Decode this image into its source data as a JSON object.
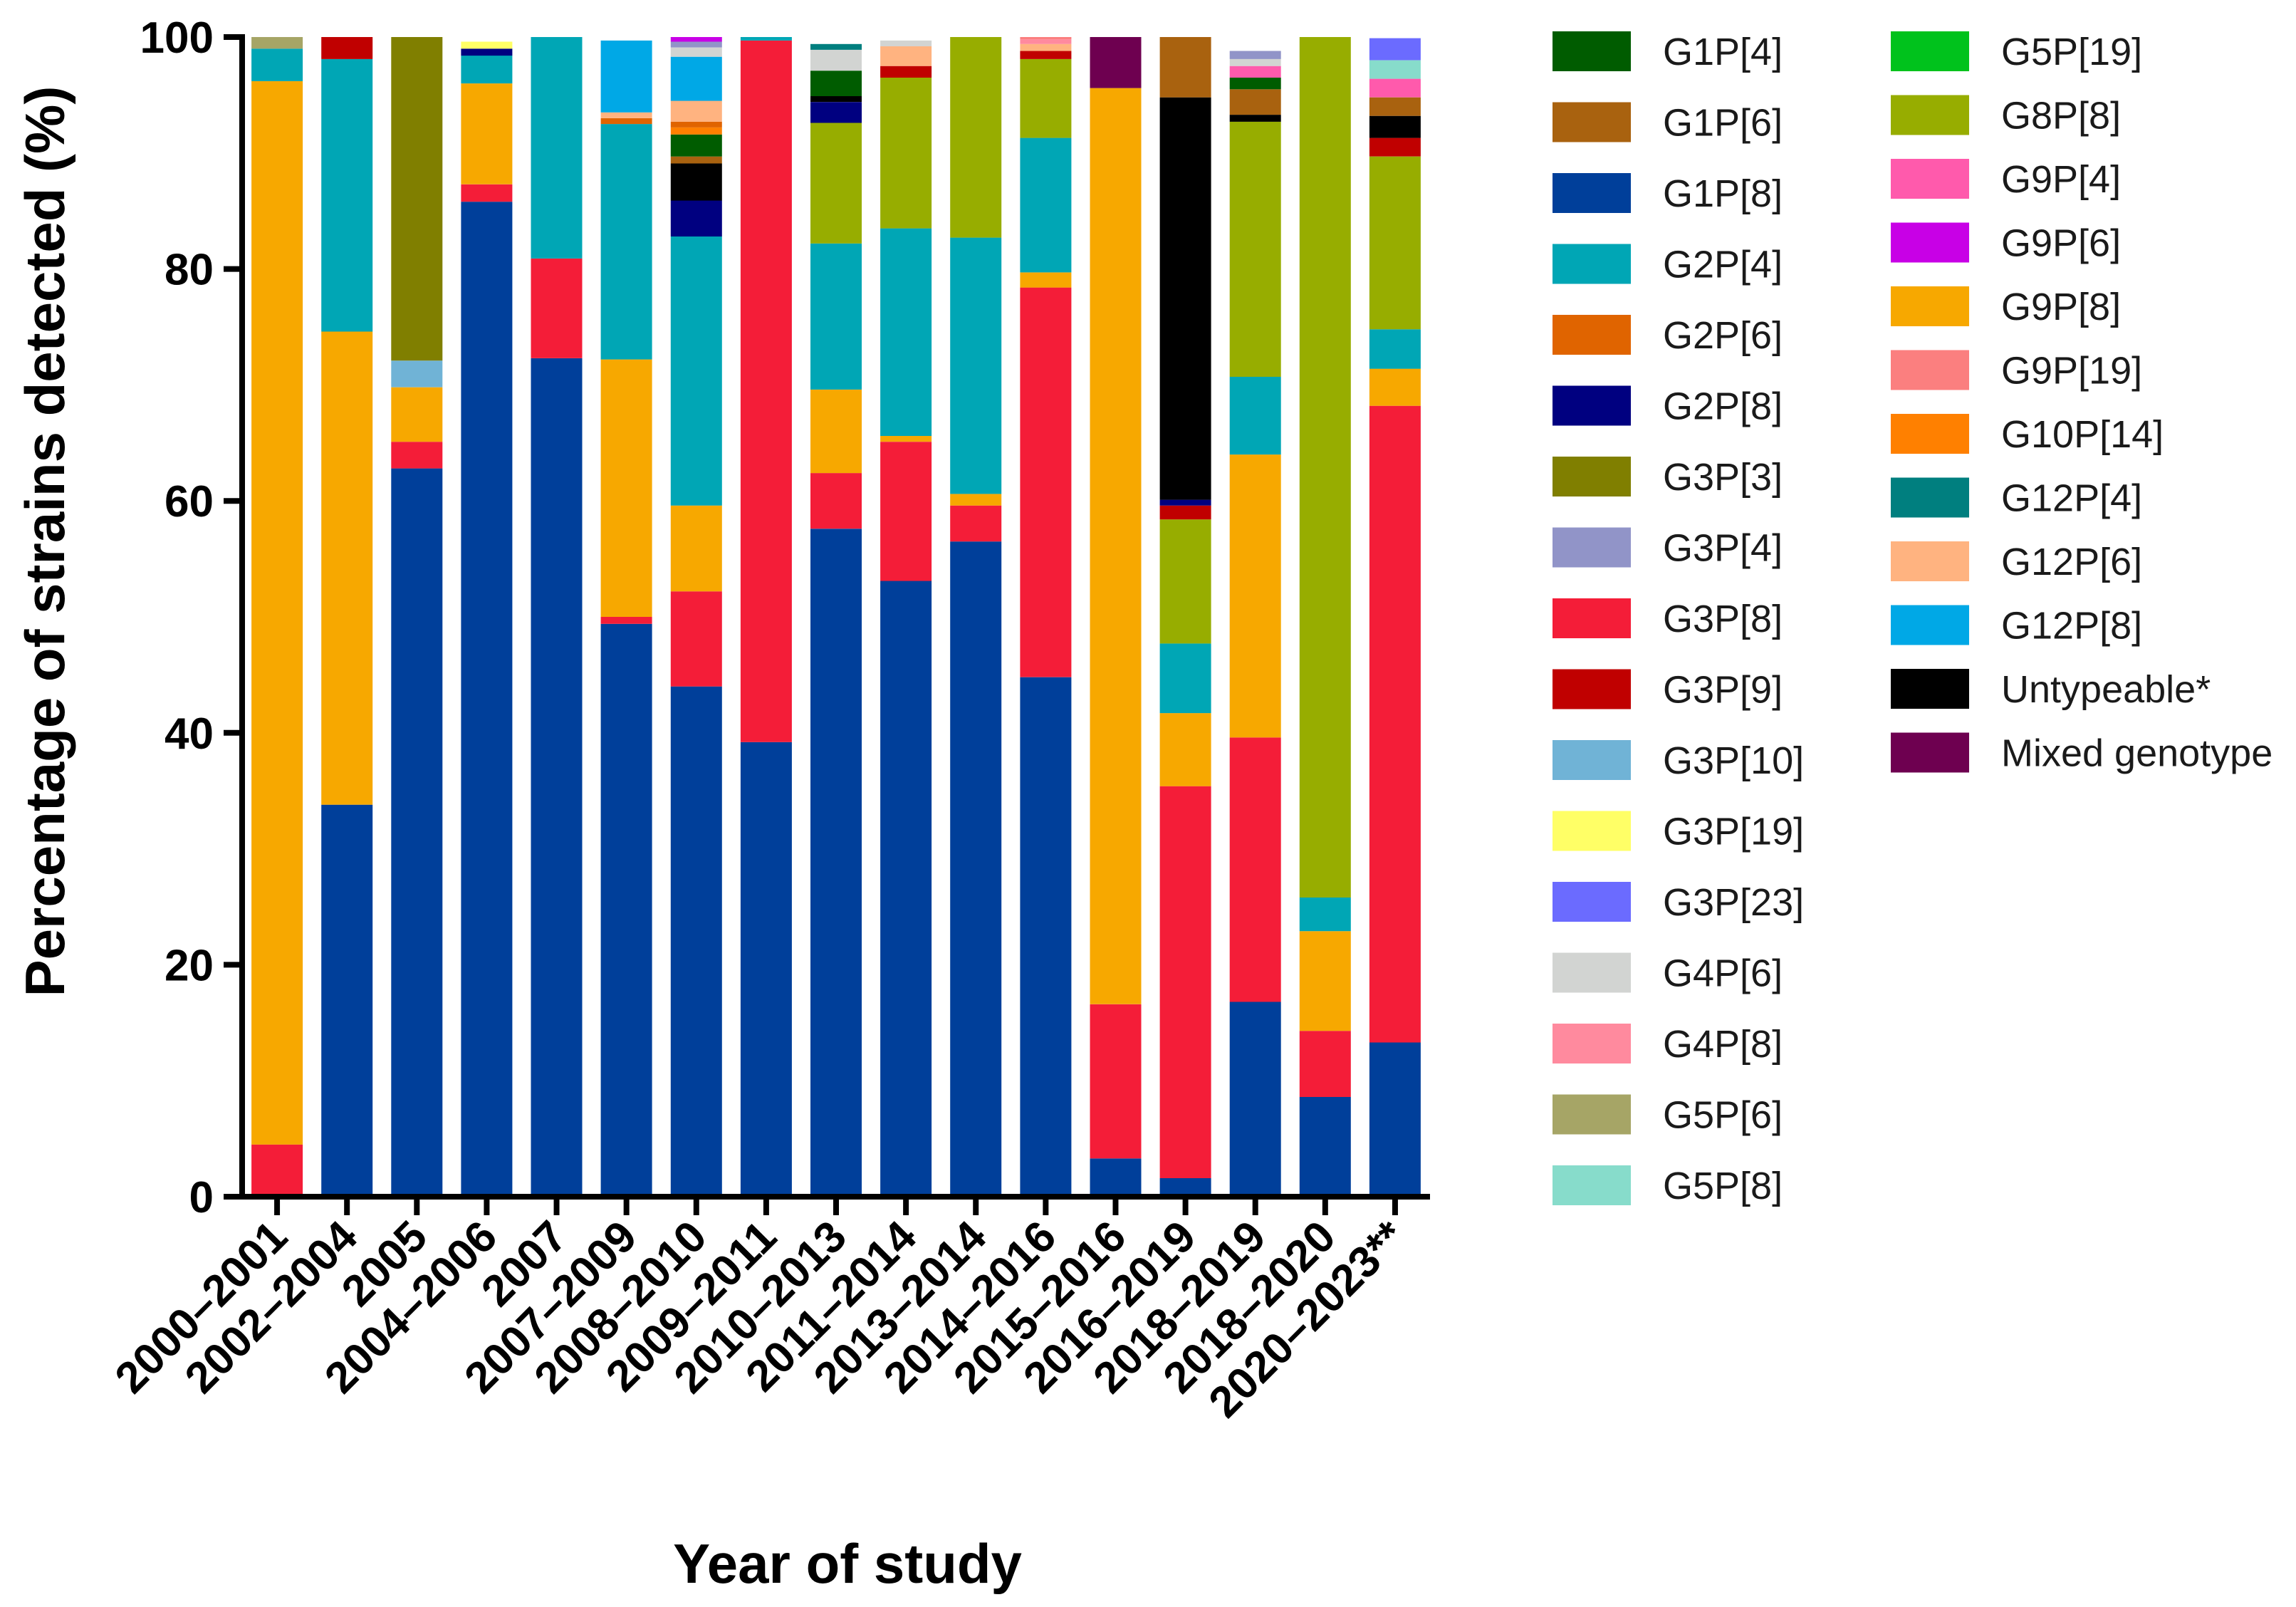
{
  "chart_data": {
    "type": "bar",
    "stacked": true,
    "title": "",
    "xlabel": "Year of study",
    "ylabel": "Percentage of strains detected (%)",
    "ylim": [
      0,
      100
    ],
    "yticks": [
      "0",
      "20",
      "40",
      "60",
      "80",
      "100"
    ],
    "legend_position": "right",
    "categories": [
      "2000–2001",
      "2002–2004",
      "2005",
      "2004–2006",
      "2007",
      "2007–2009",
      "2008–2010",
      "2009–2011",
      "2010–2013",
      "2011–2014",
      "2013–2014",
      "2014–2016",
      "2015–2016",
      "2016–2019",
      "2018–2019",
      "2018–2020",
      "2020–2023**"
    ],
    "series": [
      {
        "name": "G1P[8]",
        "color": "#003f9a",
        "values": [
          0,
          33.8,
          62.8,
          85.8,
          72.3,
          49.4,
          44.0,
          39.2,
          57.6,
          53.1,
          56.5,
          44.8,
          3.3,
          1.6,
          16.8,
          8.6,
          13.3
        ]
      },
      {
        "name": "G3P[8]",
        "color": "#f41d38",
        "values": [
          4.5,
          0,
          2.3,
          1.5,
          8.6,
          0.6,
          8.2,
          60.5,
          4.8,
          12.0,
          3.1,
          33.6,
          13.3,
          33.8,
          22.8,
          5.7,
          54.9
        ]
      },
      {
        "name": "G9P[8]",
        "color": "#f7a800",
        "values": [
          91.7,
          40.8,
          4.7,
          8.7,
          0,
          22.2,
          7.4,
          0,
          7.2,
          0.5,
          1.0,
          1.3,
          79.0,
          6.3,
          24.4,
          8.6,
          3.2
        ]
      },
      {
        "name": "G3P[10]",
        "color": "#70b3d6",
        "values": [
          0,
          0,
          2.3,
          0,
          0,
          0,
          0,
          0,
          0,
          0,
          0,
          0,
          0,
          0,
          0,
          0,
          0
        ]
      },
      {
        "name": "G2P[4]",
        "color": "#00a6b5",
        "values": [
          2.8,
          23.5,
          0,
          2.4,
          19.1,
          20.3,
          23.2,
          0.3,
          12.6,
          17.9,
          22.1,
          11.6,
          0,
          6.0,
          6.7,
          2.9,
          3.4
        ]
      },
      {
        "name": "G8P[8]",
        "color": "#97ad00",
        "values": [
          0,
          0,
          0,
          0,
          0,
          0,
          0,
          0,
          10.4,
          13.0,
          17.3,
          6.8,
          0,
          10.7,
          22.0,
          74.2,
          14.9
        ]
      },
      {
        "name": "G3P[3]",
        "color": "#807f00",
        "values": [
          0,
          0,
          27.9,
          0,
          0,
          0,
          0,
          0,
          0,
          0,
          0,
          0,
          0,
          0,
          0,
          0,
          0
        ]
      },
      {
        "name": "G5P[6]",
        "color": "#a6a566",
        "values": [
          1.0,
          0,
          0,
          0,
          0,
          0,
          0,
          0,
          0,
          0,
          0,
          0,
          0,
          0,
          0,
          0,
          0
        ]
      },
      {
        "name": "G3P[9]",
        "color": "#c00000",
        "values": [
          0,
          2.0,
          0,
          0,
          0,
          0,
          0,
          0,
          0,
          1.0,
          0,
          0.7,
          0,
          1.2,
          0,
          0,
          1.6
        ]
      },
      {
        "name": "G2P[8]",
        "color": "#000080",
        "values": [
          0,
          0,
          0,
          0.6,
          0,
          0,
          3.1,
          0,
          1.8,
          0,
          0,
          0,
          0,
          0.5,
          0,
          0,
          0
        ]
      },
      {
        "name": "G3P[19]",
        "color": "#ffff66",
        "values": [
          0,
          0,
          0,
          0.6,
          0,
          0,
          0,
          0,
          0,
          0,
          0,
          0,
          0,
          0,
          0,
          0,
          0
        ]
      },
      {
        "name": "Untypeable*",
        "color": "#000000",
        "values": [
          0,
          0,
          0,
          0,
          0,
          0,
          3.2,
          0,
          0.5,
          0,
          0,
          0,
          0,
          34.7,
          0.6,
          0,
          1.9
        ]
      },
      {
        "name": "G1P[6]",
        "color": "#a9620f",
        "values": [
          0,
          0,
          0,
          0,
          0,
          0,
          0.6,
          0,
          0,
          0,
          0,
          0,
          0,
          5.2,
          2.2,
          0,
          1.6
        ]
      },
      {
        "name": "G1P[4]",
        "color": "#005c00",
        "values": [
          0,
          0,
          0,
          0,
          0,
          0,
          1.9,
          0,
          2.2,
          0,
          0,
          0,
          0,
          0,
          1.0,
          0,
          0
        ]
      },
      {
        "name": "G9P[4]",
        "color": "#ff5aac",
        "values": [
          0,
          0,
          0,
          0,
          0,
          0,
          0,
          0,
          0,
          0,
          0,
          0,
          0,
          0,
          1.0,
          0,
          1.6
        ]
      },
      {
        "name": "G10P[14]",
        "color": "#ff8000",
        "values": [
          0,
          0,
          0,
          0,
          0,
          0,
          0.6,
          0,
          0,
          0,
          0,
          0,
          0,
          0,
          0,
          0,
          0
        ]
      },
      {
        "name": "G2P[6]",
        "color": "#e06400",
        "values": [
          0,
          0,
          0,
          0,
          0,
          0.5,
          0.5,
          0,
          0,
          0,
          0,
          0,
          0,
          0,
          0,
          0,
          0
        ]
      },
      {
        "name": "G12P[6]",
        "color": "#ffb380",
        "values": [
          0,
          0,
          0,
          0,
          0,
          0.5,
          1.8,
          0,
          0,
          1.7,
          0,
          0.6,
          0,
          0,
          0,
          0,
          0
        ]
      },
      {
        "name": "G12P[8]",
        "color": "#00a8e6",
        "values": [
          0,
          0,
          0,
          0,
          0,
          6.2,
          3.8,
          0,
          0,
          0,
          0,
          0,
          0,
          0,
          0,
          0,
          0
        ]
      },
      {
        "name": "G4P[6]",
        "color": "#d2d4d2",
        "values": [
          0,
          0,
          0,
          0,
          0,
          0,
          0.8,
          0,
          1.8,
          0.5,
          0,
          0,
          0,
          0,
          0.6,
          0,
          0
        ]
      },
      {
        "name": "G4P[8]",
        "color": "#ff8a9e",
        "values": [
          0,
          0,
          0,
          0,
          0,
          0,
          0,
          0,
          0,
          0,
          0,
          0.4,
          0,
          0,
          0,
          0,
          0
        ]
      },
      {
        "name": "G3P[4]",
        "color": "#9194c8",
        "values": [
          0,
          0,
          0,
          0,
          0,
          0,
          0.5,
          0,
          0,
          0,
          0,
          0,
          0,
          0,
          0.7,
          0,
          0
        ]
      },
      {
        "name": "G5P[8]",
        "color": "#87dccb",
        "values": [
          0,
          0,
          0,
          0,
          0,
          0,
          0,
          0,
          0,
          0,
          0,
          0,
          0,
          0,
          0,
          0,
          1.6
        ]
      },
      {
        "name": "G12P[4]",
        "color": "#007f7f",
        "values": [
          0,
          0,
          0,
          0,
          0,
          0,
          0,
          0,
          0.5,
          0,
          0,
          0,
          0,
          0,
          0,
          0,
          0
        ]
      },
      {
        "name": "G9P[6]",
        "color": "#c800e6",
        "values": [
          0,
          0,
          0,
          0,
          0,
          0,
          0.4,
          0,
          0,
          0,
          0,
          0,
          0,
          0,
          0,
          0,
          0
        ]
      },
      {
        "name": "G3P[23]",
        "color": "#6b6bff",
        "values": [
          0,
          0,
          0,
          0,
          0,
          0,
          0,
          0,
          0,
          0,
          0,
          0,
          0,
          0,
          0,
          0,
          1.9
        ]
      },
      {
        "name": "G9P[19]",
        "color": "#fb7f7f",
        "values": [
          0,
          0,
          0,
          0,
          0,
          0,
          0,
          0,
          0,
          0,
          0,
          0.2,
          0,
          0,
          0,
          0,
          0
        ]
      },
      {
        "name": "G5P[19]",
        "color": "#00c21c",
        "values": [
          0,
          0,
          0,
          0,
          0,
          0,
          0,
          0,
          0,
          0,
          0,
          0,
          0,
          0,
          0,
          0,
          0
        ]
      },
      {
        "name": "Mixed genotype",
        "color": "#6e0050",
        "values": [
          0,
          0,
          0,
          0,
          0,
          0,
          0,
          0,
          0,
          0,
          0,
          0,
          4.4,
          0,
          0,
          0,
          0
        ]
      }
    ],
    "legend": {
      "column1": [
        {
          "label": "G1P[4]",
          "color": "#005c00"
        },
        {
          "label": "G1P[6]",
          "color": "#a9620f"
        },
        {
          "label": "G1P[8]",
          "color": "#003f9a"
        },
        {
          "label": "G2P[4]",
          "color": "#00a6b5"
        },
        {
          "label": "G2P[6]",
          "color": "#e06400"
        },
        {
          "label": "G2P[8]",
          "color": "#000080"
        },
        {
          "label": "G3P[3]",
          "color": "#807f00"
        },
        {
          "label": "G3P[4]",
          "color": "#9194c8"
        },
        {
          "label": "G3P[8]",
          "color": "#f41d38"
        },
        {
          "label": "G3P[9]",
          "color": "#c00000"
        },
        {
          "label": "G3P[10]",
          "color": "#70b3d6"
        },
        {
          "label": "G3P[19]",
          "color": "#ffff66"
        },
        {
          "label": "G3P[23]",
          "color": "#6b6bff"
        },
        {
          "label": "G4P[6]",
          "color": "#d2d4d2"
        },
        {
          "label": "G4P[8]",
          "color": "#ff8a9e"
        },
        {
          "label": "G5P[6]",
          "color": "#a6a566"
        },
        {
          "label": "G5P[8]",
          "color": "#87dccb"
        }
      ],
      "column2": [
        {
          "label": "G5P[19]",
          "color": "#00c21c"
        },
        {
          "label": "G8P[8]",
          "color": "#97ad00"
        },
        {
          "label": "G9P[4]",
          "color": "#ff5aac"
        },
        {
          "label": "G9P[6]",
          "color": "#c800e6"
        },
        {
          "label": "G9P[8]",
          "color": "#f7a800"
        },
        {
          "label": "G9P[19]",
          "color": "#fb7f7f"
        },
        {
          "label": "G10P[14]",
          "color": "#ff8000"
        },
        {
          "label": "G12P[4]",
          "color": "#007f7f"
        },
        {
          "label": "G12P[6]",
          "color": "#ffb380"
        },
        {
          "label": "G12P[8]",
          "color": "#00a8e6"
        },
        {
          "label": "Untypeable*",
          "color": "#000000"
        },
        {
          "label": "Mixed genotype",
          "color": "#6e0050"
        }
      ]
    }
  }
}
